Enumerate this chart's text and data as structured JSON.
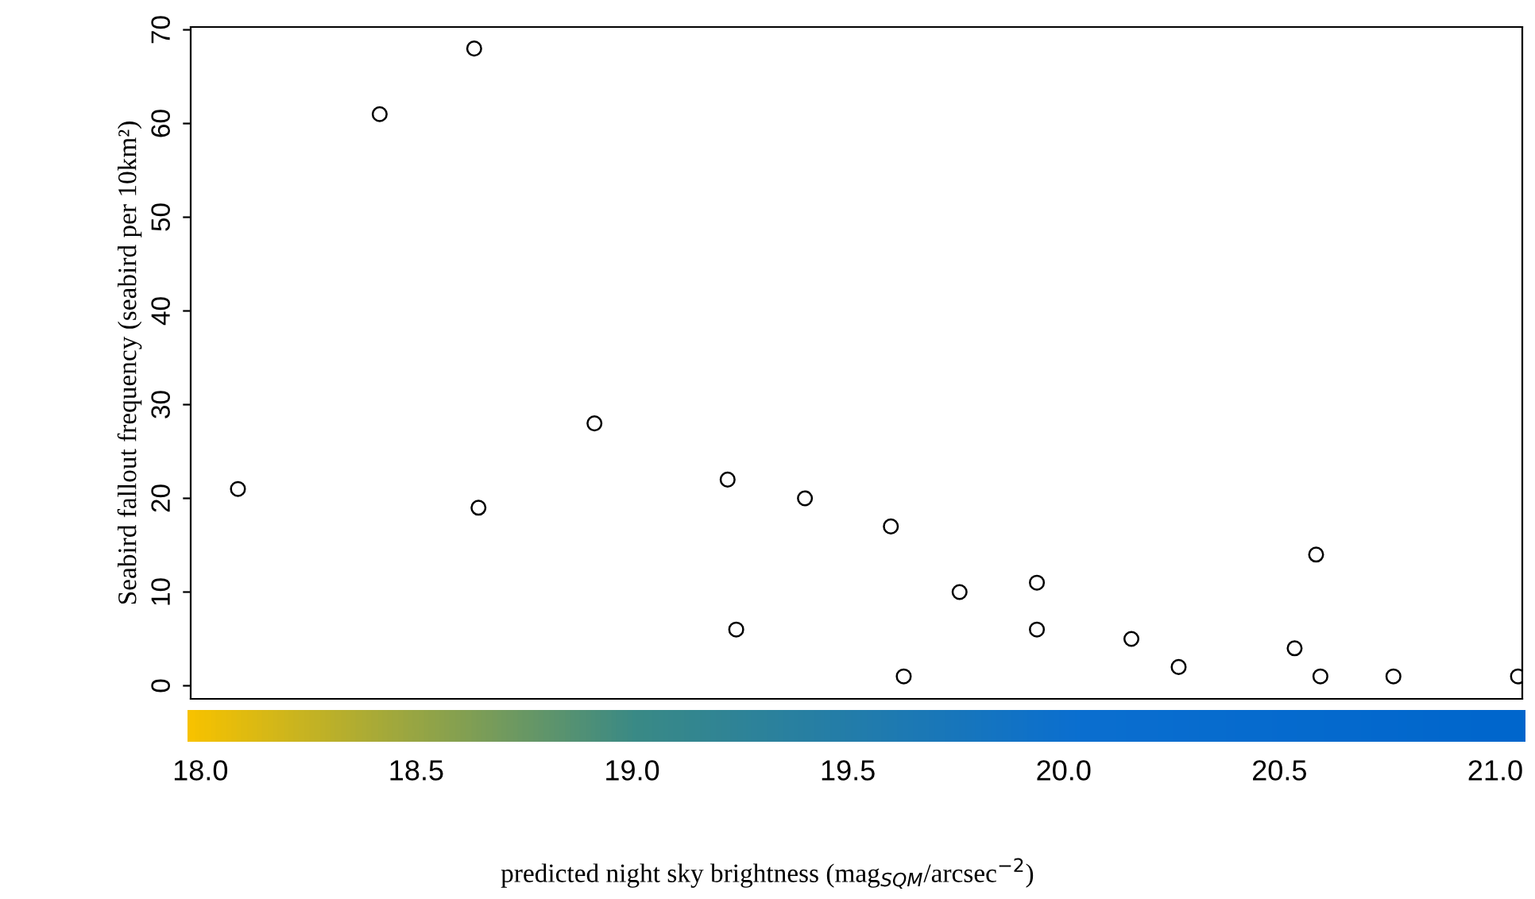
{
  "chart_data": {
    "type": "scatter",
    "xlabel": "predicted night sky brightness (mag$_{SQM}$/arcsec$^{−2}$)",
    "ylabel": "Seabird fallout frequency (seabird per 10km²)",
    "x": [
      18.08,
      18.41,
      18.63,
      18.64,
      18.91,
      19.22,
      19.24,
      19.4,
      19.6,
      19.63,
      19.76,
      19.94,
      19.94,
      20.16,
      20.27,
      20.54,
      20.59,
      20.6,
      20.77,
      21.06
    ],
    "values": [
      21,
      61,
      68,
      19,
      28,
      22,
      6,
      20,
      17,
      1,
      10,
      11,
      6,
      5,
      2,
      4,
      14,
      1,
      1,
      1
    ],
    "color": "#000000",
    "marker": "circle",
    "xlim": [
      17.97,
      21.07
    ],
    "xticks": [
      {
        "value": 18,
        "label": "18.0"
      },
      {
        "value": 18.5,
        "label": "18.5"
      },
      {
        "value": 19,
        "label": "19.0"
      },
      {
        "value": 19.5,
        "label": "19.5"
      },
      {
        "value": 20,
        "label": "20.0"
      },
      {
        "value": 20.5,
        "label": "20.5"
      },
      {
        "value": 21,
        "label": "21.0"
      }
    ],
    "ylim": [
      -1.4,
      70.3
    ],
    "yticks": [
      0,
      10,
      20,
      30,
      40,
      50,
      60,
      70
    ],
    "grid": false
  }
}
